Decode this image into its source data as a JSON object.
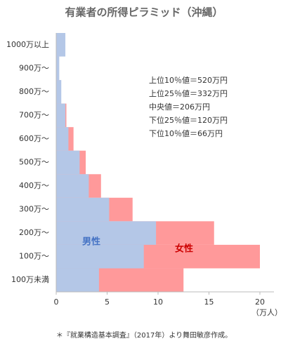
{
  "chart_data": {
    "type": "bar",
    "orientation": "horizontal",
    "title": "有業者の所得ピラミッド（沖縄）",
    "categories": [
      "1000万以上",
      "900万〜",
      "800万〜",
      "700万〜",
      "600万〜",
      "500万〜",
      "400万〜",
      "300万〜",
      "200万〜",
      "100万〜",
      "100万未満"
    ],
    "series": [
      {
        "name": "女性",
        "color": "#ff999a",
        "label_color": "#cc0000",
        "values": [
          0.5,
          0.2,
          0.3,
          1.0,
          1.7,
          2.9,
          4.4,
          7.5,
          15.5,
          20.0,
          12.5
        ]
      },
      {
        "name": "男性",
        "color": "#b4c7e7",
        "label_color": "#4472c4",
        "values": [
          0.9,
          0.3,
          0.5,
          0.9,
          1.2,
          2.3,
          3.2,
          5.2,
          9.8,
          8.6,
          4.2
        ]
      }
    ],
    "xlim": [
      0,
      20
    ],
    "xticks": [
      0,
      5,
      10,
      15,
      20
    ],
    "x_label": "（万人）",
    "annotations": [
      "上位10％値＝520万円",
      "上位25％値＝332万円",
      "中央値＝206万円",
      "下位25％値＝120万円",
      "下位10％値＝66万円"
    ],
    "note": "＊『就業構造基本調査』（2017年）より舞田敏彦作成。"
  }
}
